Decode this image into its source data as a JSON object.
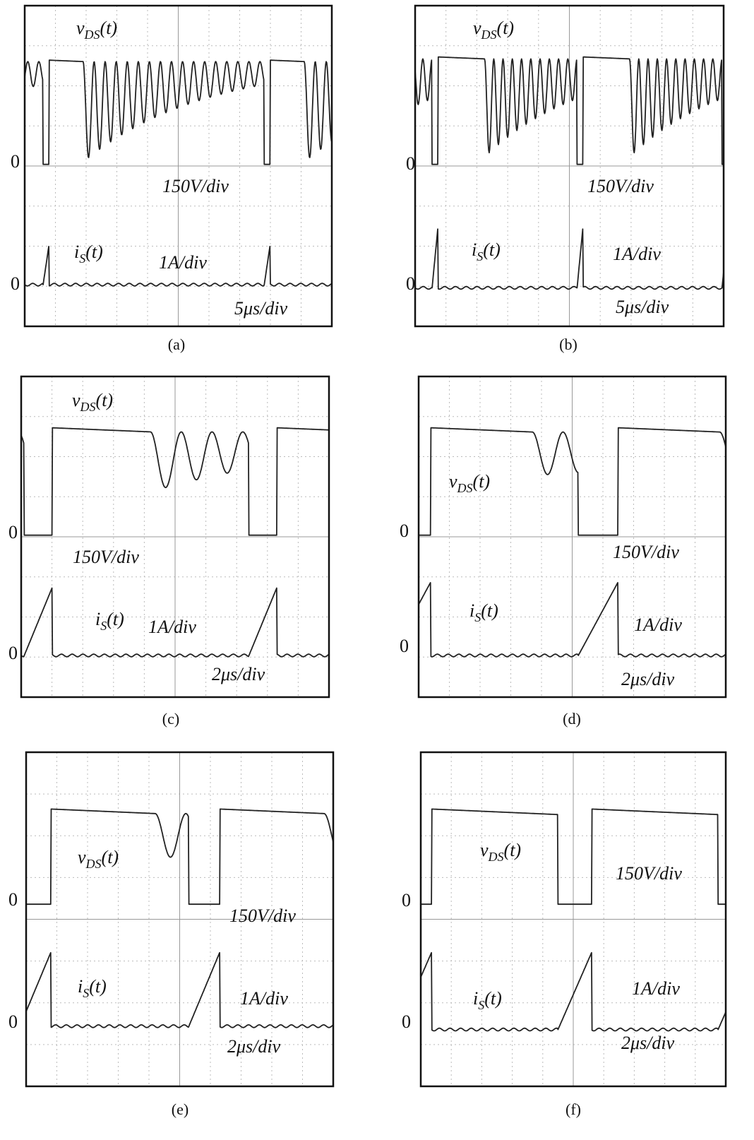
{
  "panels": [
    {
      "caption": "(a)",
      "vds": {
        "base": "v",
        "sub": "DS",
        "tail": "(t)"
      },
      "is": {
        "base": "i",
        "sub": "S",
        "tail": "(t)"
      },
      "voltage_scale": "150V/div",
      "current_scale": "1A/div",
      "time_scale": "5μs/div",
      "zero_label": "0"
    },
    {
      "caption": "(b)",
      "vds": {
        "base": "v",
        "sub": "DS",
        "tail": "(t)"
      },
      "is": {
        "base": "i",
        "sub": "S",
        "tail": "(t)"
      },
      "voltage_scale": "150V/div",
      "current_scale": "1A/div",
      "time_scale": "5μs/div",
      "zero_label": "0"
    },
    {
      "caption": "(c)",
      "vds": {
        "base": "v",
        "sub": "DS",
        "tail": "(t)"
      },
      "is": {
        "base": "i",
        "sub": "S",
        "tail": "(t)"
      },
      "voltage_scale": "150V/div",
      "current_scale": "1A/div",
      "time_scale": "2μs/div",
      "zero_label": "0"
    },
    {
      "caption": "(d)",
      "vds": {
        "base": "v",
        "sub": "DS",
        "tail": "(t)"
      },
      "is": {
        "base": "i",
        "sub": "S",
        "tail": "(t)"
      },
      "voltage_scale": "150V/div",
      "current_scale": "1A/div",
      "time_scale": "2μs/div",
      "zero_label": "0"
    },
    {
      "caption": "(e)",
      "vds": {
        "base": "v",
        "sub": "DS",
        "tail": "(t)"
      },
      "is": {
        "base": "i",
        "sub": "S",
        "tail": "(t)"
      },
      "voltage_scale": "150V/div",
      "current_scale": "1A/div",
      "time_scale": "2μs/div",
      "zero_label": "0"
    },
    {
      "caption": "(f)",
      "vds": {
        "base": "v",
        "sub": "DS",
        "tail": "(t)"
      },
      "is": {
        "base": "i",
        "sub": "S",
        "tail": "(t)"
      },
      "voltage_scale": "150V/div",
      "current_scale": "1A/div",
      "time_scale": "2μs/div",
      "zero_label": "0"
    }
  ]
}
